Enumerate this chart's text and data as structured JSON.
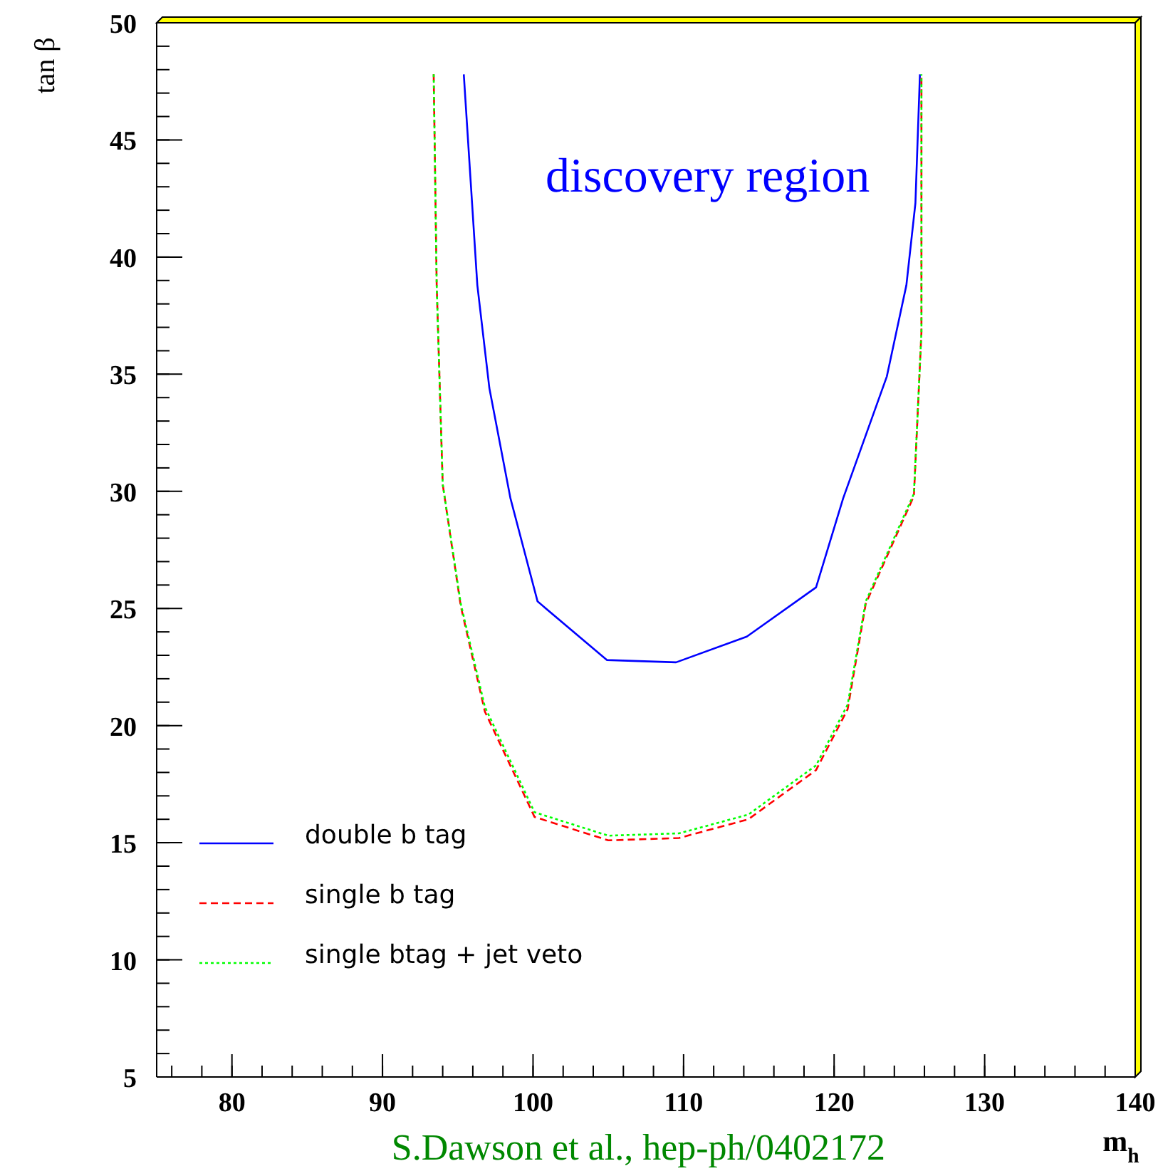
{
  "chart_data": {
    "type": "line",
    "xlabel": "m$_{h}$",
    "ylabel": "tan β",
    "xlim": [
      75,
      140
    ],
    "xticks": [
      80,
      90,
      100,
      110,
      120,
      130,
      140
    ],
    "ylim": [
      5,
      50
    ],
    "yticks": [
      5,
      10,
      15,
      20,
      25,
      30,
      35,
      40,
      45,
      50
    ],
    "grid": false,
    "legend": "bottom left",
    "annotations": [
      "discovery region",
      "S.Dawson et al., hep-ph/0402172"
    ],
    "series": [
      {
        "name": "double b tag",
        "color": "#0000ff",
        "line_style": "solid",
        "x": [
          95.4,
          96.3,
          97.1,
          98.5,
          100.3,
          104.9,
          109.5,
          114.2,
          118.8,
          120.6,
          123.5,
          124.8,
          125.4,
          125.7
        ],
        "values": [
          47.8,
          38.8,
          34.4,
          29.7,
          25.3,
          22.8,
          22.7,
          23.8,
          25.9,
          29.7,
          34.9,
          38.8,
          42.3,
          47.8
        ]
      },
      {
        "name": "single b tag",
        "color": "#ff0000",
        "line_style": "dashed",
        "x": [
          93.4,
          93.6,
          94.0,
          95.2,
          96.8,
          100.1,
          105.0,
          109.7,
          114.3,
          118.8,
          120.9,
          122.1,
          125.3,
          125.8,
          125.8
        ],
        "values": [
          47.8,
          38.8,
          30.3,
          25.1,
          20.6,
          16.1,
          15.1,
          15.2,
          16.0,
          18.1,
          20.7,
          25.2,
          29.8,
          36.8,
          47.8
        ]
      },
      {
        "name": "single btag + jet veto",
        "color": "#00ff00",
        "line_style": "dotted",
        "x": [
          93.4,
          93.6,
          94.0,
          95.2,
          96.8,
          100.1,
          105.0,
          109.7,
          114.3,
          118.8,
          120.9,
          122.1,
          125.3,
          125.8,
          125.8
        ],
        "values": [
          47.8,
          38.8,
          30.3,
          25.2,
          20.8,
          16.3,
          15.3,
          15.4,
          16.2,
          18.3,
          20.9,
          25.3,
          29.9,
          36.8,
          47.8
        ]
      }
    ]
  }
}
